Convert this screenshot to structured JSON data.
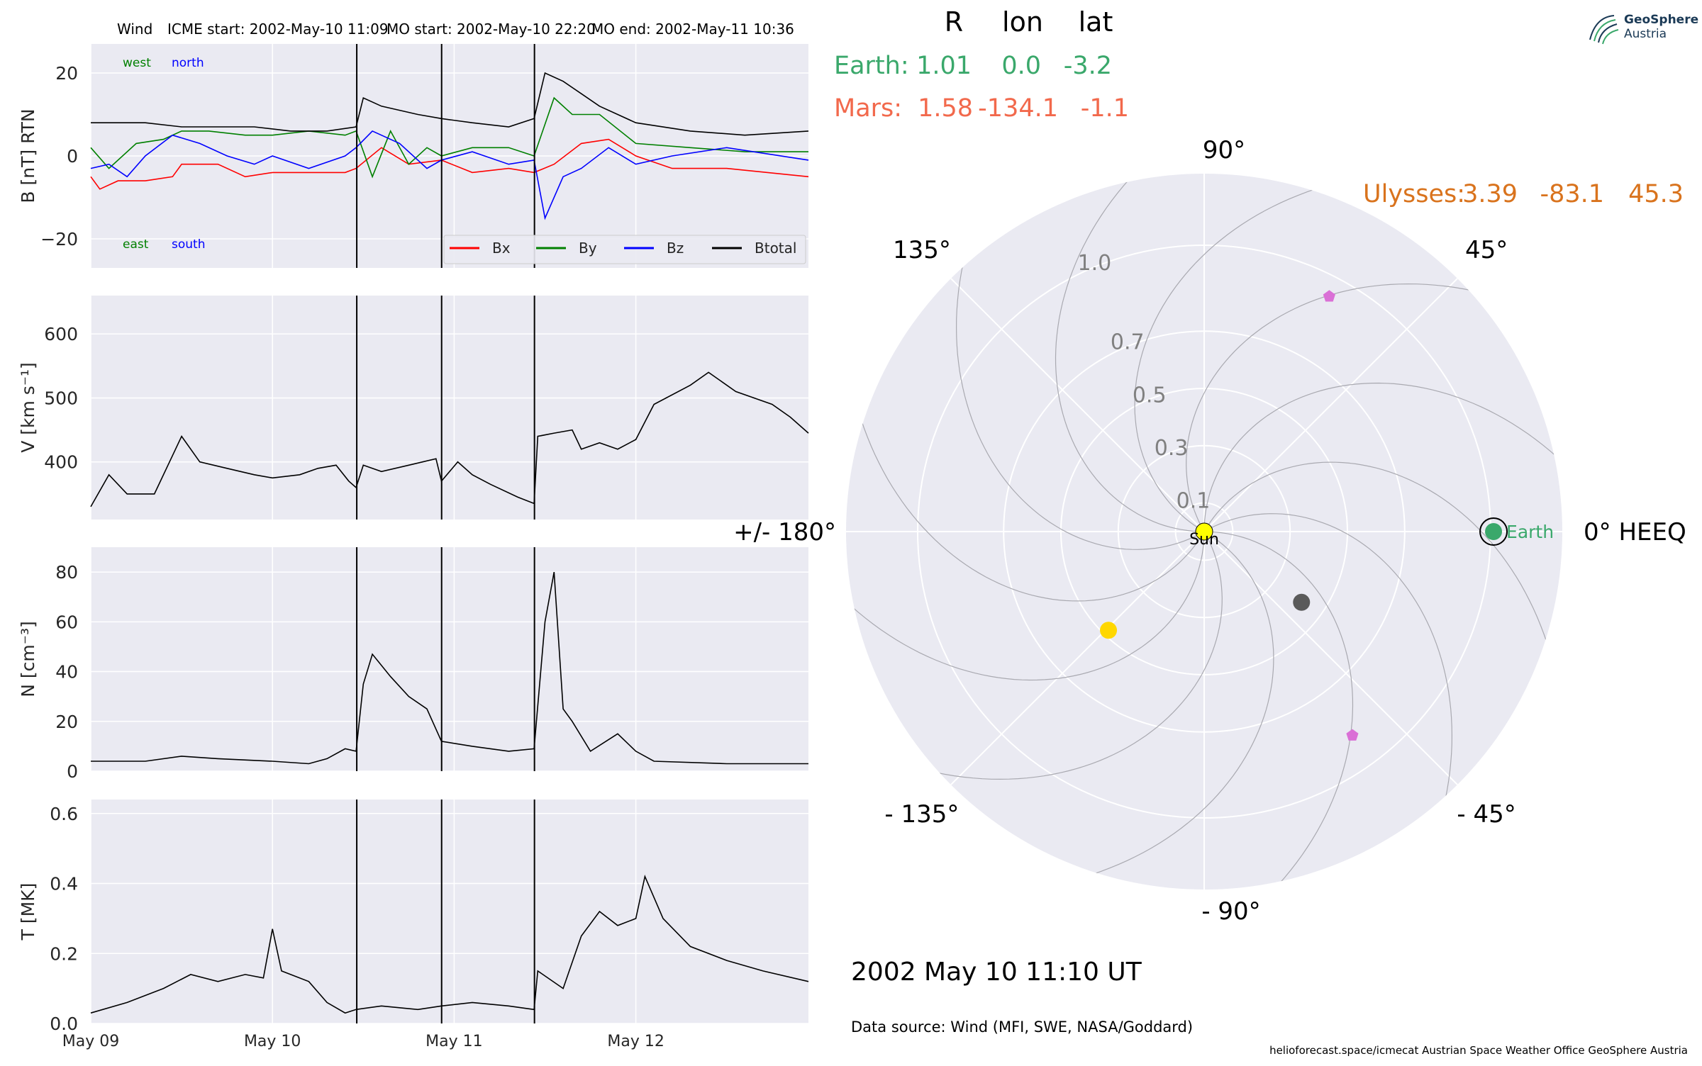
{
  "header": {
    "spacecraft": "Wind",
    "icme_start": "ICME start: 2002-May-10 11:09",
    "mo_start": "MO start: 2002-May-10 22:20",
    "mo_end": "MO end: 2002-May-11 10:36"
  },
  "brand": {
    "name": "GeoSphere",
    "sub": "Austria"
  },
  "footer": {
    "datetime": "2002 May 10  11:10 UT",
    "source": "Data source: Wind (MFI, SWE, NASA/Goddard)",
    "credits": "helioforecast.space/icmecat   Austrian Space Weather Office   GeoSphere Austria"
  },
  "positions_table": {
    "headers": [
      "R",
      "lon",
      "lat"
    ],
    "rows": [
      {
        "name": "Earth:",
        "R": "1.01",
        "lon": "0.0",
        "lat": "-3.2",
        "color": "#3aa86b"
      },
      {
        "name": "Mars:",
        "R": "1.58",
        "lon": "-134.1",
        "lat": "-1.1",
        "color": "#f2694c"
      },
      {
        "name": "Ulysses:",
        "R": "3.39",
        "lon": "-83.1",
        "lat": "45.3",
        "color": "#d9731d"
      }
    ]
  },
  "colors": {
    "panel_bg": "#eaeaf2",
    "bx": "#ff0000",
    "by": "#008000",
    "bz": "#0000ff",
    "btotal": "#000000",
    "earth": "#3aa86b",
    "sun": "#ffff00",
    "mars_marker": "#ffd700",
    "grey_marker": "#5a5a5a",
    "pentagon": "#da70d6"
  },
  "chart_data": [
    {
      "type": "line",
      "name": "magnetic-field",
      "ylabel": "B [nT] RTN",
      "ylim": [
        -27,
        27
      ],
      "yticks": [
        -20,
        0,
        20
      ],
      "xrange_days": [
        0,
        3.95
      ],
      "xtick_labels": [
        "May 09",
        "May 10",
        "May 11",
        "May 12"
      ],
      "annotations": {
        "west": "west",
        "north": "north",
        "east": "east",
        "south": "south"
      },
      "legend_position": "lower-right",
      "event_lines_days": [
        1.464,
        1.931,
        2.442
      ],
      "series": [
        {
          "name": "Bx",
          "color": "#ff0000",
          "points": [
            [
              0,
              -5
            ],
            [
              0.05,
              -8
            ],
            [
              0.15,
              -6
            ],
            [
              0.3,
              -6
            ],
            [
              0.45,
              -5
            ],
            [
              0.5,
              -2
            ],
            [
              0.7,
              -2
            ],
            [
              0.85,
              -5
            ],
            [
              1.0,
              -4
            ],
            [
              1.2,
              -4
            ],
            [
              1.4,
              -4
            ],
            [
              1.46,
              -3
            ],
            [
              1.6,
              2
            ],
            [
              1.75,
              -2
            ],
            [
              1.93,
              -1
            ],
            [
              2.1,
              -4
            ],
            [
              2.3,
              -3
            ],
            [
              2.44,
              -4
            ],
            [
              2.55,
              -2
            ],
            [
              2.7,
              3
            ],
            [
              2.85,
              4
            ],
            [
              3.0,
              0
            ],
            [
              3.2,
              -3
            ],
            [
              3.5,
              -3
            ],
            [
              3.95,
              -5
            ]
          ]
        },
        {
          "name": "By",
          "color": "#008000",
          "points": [
            [
              0,
              2
            ],
            [
              0.1,
              -3
            ],
            [
              0.25,
              3
            ],
            [
              0.4,
              4
            ],
            [
              0.5,
              6
            ],
            [
              0.65,
              6
            ],
            [
              0.85,
              5
            ],
            [
              1.0,
              5
            ],
            [
              1.2,
              6
            ],
            [
              1.4,
              5
            ],
            [
              1.46,
              6
            ],
            [
              1.55,
              -5
            ],
            [
              1.65,
              6
            ],
            [
              1.75,
              -2
            ],
            [
              1.85,
              2
            ],
            [
              1.93,
              0
            ],
            [
              2.1,
              2
            ],
            [
              2.3,
              2
            ],
            [
              2.44,
              0
            ],
            [
              2.55,
              14
            ],
            [
              2.65,
              10
            ],
            [
              2.8,
              10
            ],
            [
              3.0,
              3
            ],
            [
              3.3,
              2
            ],
            [
              3.6,
              1
            ],
            [
              3.95,
              1
            ]
          ]
        },
        {
          "name": "Bz",
          "color": "#0000ff",
          "points": [
            [
              0,
              -3
            ],
            [
              0.1,
              -2
            ],
            [
              0.2,
              -5
            ],
            [
              0.3,
              0
            ],
            [
              0.45,
              5
            ],
            [
              0.6,
              3
            ],
            [
              0.75,
              0
            ],
            [
              0.9,
              -2
            ],
            [
              1.0,
              0
            ],
            [
              1.2,
              -3
            ],
            [
              1.4,
              0
            ],
            [
              1.46,
              2
            ],
            [
              1.55,
              6
            ],
            [
              1.7,
              3
            ],
            [
              1.85,
              -3
            ],
            [
              1.93,
              -1
            ],
            [
              2.1,
              1
            ],
            [
              2.3,
              -2
            ],
            [
              2.44,
              -1
            ],
            [
              2.5,
              -15
            ],
            [
              2.6,
              -5
            ],
            [
              2.7,
              -3
            ],
            [
              2.85,
              2
            ],
            [
              3.0,
              -2
            ],
            [
              3.2,
              0
            ],
            [
              3.5,
              2
            ],
            [
              3.95,
              -1
            ]
          ]
        },
        {
          "name": "Btotal",
          "color": "#000000",
          "points": [
            [
              0,
              8
            ],
            [
              0.3,
              8
            ],
            [
              0.5,
              7
            ],
            [
              0.7,
              7
            ],
            [
              0.9,
              7
            ],
            [
              1.1,
              6
            ],
            [
              1.3,
              6
            ],
            [
              1.46,
              7
            ],
            [
              1.5,
              14
            ],
            [
              1.6,
              12
            ],
            [
              1.8,
              10
            ],
            [
              1.93,
              9
            ],
            [
              2.1,
              8
            ],
            [
              2.3,
              7
            ],
            [
              2.44,
              9
            ],
            [
              2.5,
              20
            ],
            [
              2.6,
              18
            ],
            [
              2.7,
              15
            ],
            [
              2.8,
              12
            ],
            [
              2.9,
              10
            ],
            [
              3.0,
              8
            ],
            [
              3.3,
              6
            ],
            [
              3.6,
              5
            ],
            [
              3.95,
              6
            ]
          ]
        }
      ]
    },
    {
      "type": "line",
      "name": "velocity",
      "ylabel": "V [km s⁻¹]",
      "ylim": [
        310,
        660
      ],
      "yticks": [
        400,
        500,
        600
      ],
      "series": [
        {
          "name": "V",
          "color": "#000000",
          "points": [
            [
              0,
              330
            ],
            [
              0.1,
              380
            ],
            [
              0.2,
              350
            ],
            [
              0.35,
              350
            ],
            [
              0.45,
              410
            ],
            [
              0.5,
              440
            ],
            [
              0.6,
              400
            ],
            [
              0.75,
              390
            ],
            [
              0.9,
              380
            ],
            [
              1.0,
              375
            ],
            [
              1.15,
              380
            ],
            [
              1.25,
              390
            ],
            [
              1.35,
              395
            ],
            [
              1.42,
              370
            ],
            [
              1.46,
              360
            ],
            [
              1.5,
              395
            ],
            [
              1.6,
              385
            ],
            [
              1.75,
              395
            ],
            [
              1.9,
              405
            ],
            [
              1.93,
              370
            ],
            [
              2.02,
              400
            ],
            [
              2.1,
              380
            ],
            [
              2.2,
              365
            ],
            [
              2.35,
              345
            ],
            [
              2.44,
              335
            ],
            [
              2.46,
              440
            ],
            [
              2.55,
              445
            ],
            [
              2.65,
              450
            ],
            [
              2.7,
              420
            ],
            [
              2.8,
              430
            ],
            [
              2.9,
              420
            ],
            [
              3.0,
              435
            ],
            [
              3.1,
              490
            ],
            [
              3.3,
              520
            ],
            [
              3.4,
              540
            ],
            [
              3.55,
              510
            ],
            [
              3.75,
              490
            ],
            [
              3.85,
              470
            ],
            [
              3.95,
              445
            ]
          ]
        }
      ]
    },
    {
      "type": "line",
      "name": "density",
      "ylabel": "N [cm⁻³]",
      "ylim": [
        0,
        90
      ],
      "yticks": [
        0,
        20,
        40,
        60,
        80
      ],
      "series": [
        {
          "name": "N",
          "color": "#000000",
          "points": [
            [
              0,
              4
            ],
            [
              0.3,
              4
            ],
            [
              0.5,
              6
            ],
            [
              0.7,
              5
            ],
            [
              1.0,
              4
            ],
            [
              1.2,
              3
            ],
            [
              1.3,
              5
            ],
            [
              1.4,
              9
            ],
            [
              1.46,
              8
            ],
            [
              1.5,
              35
            ],
            [
              1.55,
              47
            ],
            [
              1.65,
              38
            ],
            [
              1.75,
              30
            ],
            [
              1.85,
              25
            ],
            [
              1.93,
              12
            ],
            [
              2.1,
              10
            ],
            [
              2.3,
              8
            ],
            [
              2.44,
              9
            ],
            [
              2.5,
              60
            ],
            [
              2.55,
              80
            ],
            [
              2.6,
              25
            ],
            [
              2.65,
              20
            ],
            [
              2.75,
              8
            ],
            [
              2.9,
              15
            ],
            [
              3.0,
              8
            ],
            [
              3.1,
              4
            ],
            [
              3.5,
              3
            ],
            [
              3.95,
              3
            ]
          ]
        }
      ]
    },
    {
      "type": "line",
      "name": "temperature",
      "ylabel": "T [MK]",
      "ylim": [
        0,
        0.64
      ],
      "yticks": [
        0.0,
        0.2,
        0.4,
        0.6
      ],
      "series": [
        {
          "name": "T",
          "color": "#000000",
          "points": [
            [
              0,
              0.03
            ],
            [
              0.2,
              0.06
            ],
            [
              0.4,
              0.1
            ],
            [
              0.55,
              0.14
            ],
            [
              0.7,
              0.12
            ],
            [
              0.85,
              0.14
            ],
            [
              0.95,
              0.13
            ],
            [
              1.0,
              0.27
            ],
            [
              1.05,
              0.15
            ],
            [
              1.2,
              0.12
            ],
            [
              1.3,
              0.06
            ],
            [
              1.4,
              0.03
            ],
            [
              1.46,
              0.04
            ],
            [
              1.6,
              0.05
            ],
            [
              1.8,
              0.04
            ],
            [
              1.93,
              0.05
            ],
            [
              2.1,
              0.06
            ],
            [
              2.3,
              0.05
            ],
            [
              2.44,
              0.04
            ],
            [
              2.46,
              0.15
            ],
            [
              2.6,
              0.1
            ],
            [
              2.7,
              0.25
            ],
            [
              2.8,
              0.32
            ],
            [
              2.9,
              0.28
            ],
            [
              3.0,
              0.3
            ],
            [
              3.05,
              0.42
            ],
            [
              3.15,
              0.3
            ],
            [
              3.3,
              0.22
            ],
            [
              3.5,
              0.18
            ],
            [
              3.7,
              0.15
            ],
            [
              3.95,
              0.12
            ]
          ]
        }
      ]
    },
    {
      "type": "scatter",
      "name": "polar-positions",
      "projection": "polar",
      "rticks": [
        "0.1",
        "0.3",
        "0.5",
        "0.7",
        "1.0"
      ],
      "rtick_values": [
        0.1,
        0.3,
        0.5,
        0.7,
        1.0
      ],
      "rmax": 1.25,
      "angle_labels": [
        {
          "deg": 0,
          "label": "0° HEEQ"
        },
        {
          "deg": 45,
          "label": "45°"
        },
        {
          "deg": 90,
          "label": "90°"
        },
        {
          "deg": 135,
          "label": "135°"
        },
        {
          "deg": 180,
          "label": "+/- 180°"
        },
        {
          "deg": -135,
          "label": "- 135°"
        },
        {
          "deg": -90,
          "label": "- 90°"
        },
        {
          "deg": -45,
          "label": "- 45°"
        }
      ],
      "points": [
        {
          "label": "Sun",
          "r": 0.0,
          "lon": 0,
          "color": "#ffff00",
          "marker": "circle"
        },
        {
          "label": "Earth",
          "r": 1.01,
          "lon": 0,
          "color": "#3aa86b",
          "marker": "circle-ring"
        },
        {
          "label": "",
          "r": 0.48,
          "lon": -134.1,
          "color": "#ffd700",
          "marker": "circle"
        },
        {
          "label": "",
          "r": 0.42,
          "lon": -36,
          "color": "#5a5a5a",
          "marker": "circle"
        },
        {
          "label": "",
          "r": 0.93,
          "lon": 62,
          "color": "#da70d6",
          "marker": "pentagon"
        },
        {
          "label": "",
          "r": 0.88,
          "lon": -54,
          "color": "#da70d6",
          "marker": "pentagon"
        }
      ]
    }
  ]
}
